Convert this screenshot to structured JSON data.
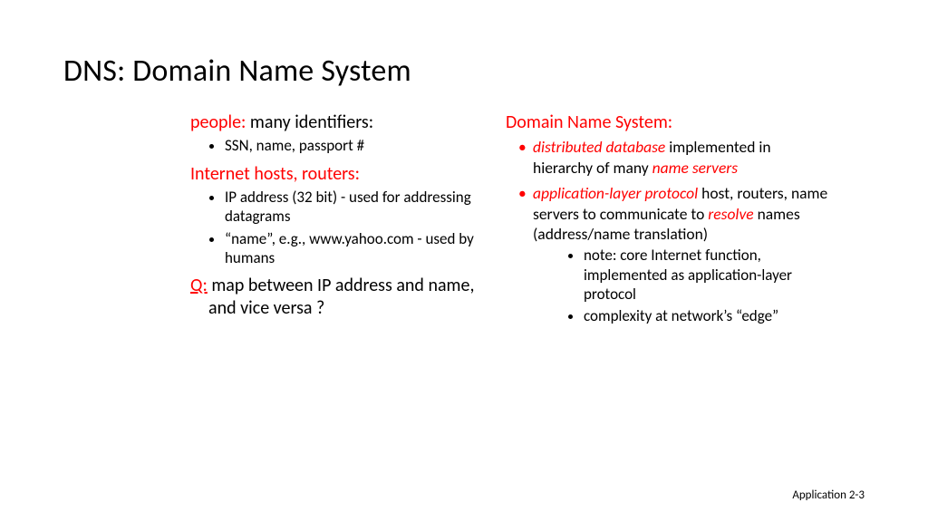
{
  "title": "DNS: Domain Name System",
  "left": {
    "people_label": "people:",
    "people_rest": " many identifiers:",
    "people_bullet1": "SSN, name, passport #",
    "hosts_label": "Internet hosts, routers:",
    "hosts_bullet1": "IP address (32 bit) - used for addressing datagrams",
    "hosts_bullet2": "“name”, e.g., www.yahoo.com - used by humans",
    "q_label": "Q:",
    "q_rest": " map between IP address and name, and vice versa ?"
  },
  "right": {
    "heading": "Domain Name System:",
    "b1_em1": "distributed database",
    "b1_mid": " implemented in hierarchy of many ",
    "b1_em2": "name servers",
    "b2_em1": "application-layer protocol",
    "b2_mid1": " host, routers, name servers to communicate to ",
    "b2_em2": "resolve",
    "b2_mid2": " names (address/name translation)",
    "sub1": "note: core Internet function, implemented as application-layer protocol",
    "sub2": "complexity at network’s “edge”"
  },
  "footer": "Application  2-3",
  "colors": {
    "accent": "#ff0000",
    "text": "#000000",
    "background": "#ffffff"
  },
  "fonts": {
    "title_size": 34,
    "heading_size": 20,
    "body_size": 17,
    "footer_size": 13
  }
}
